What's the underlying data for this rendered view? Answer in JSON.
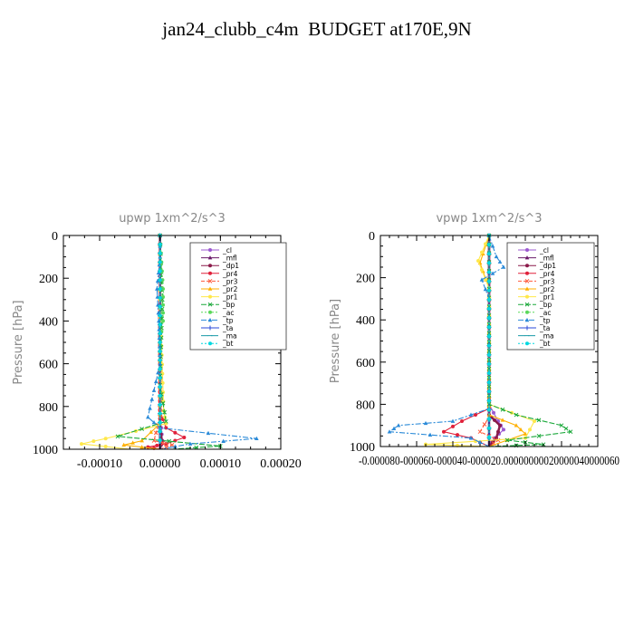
{
  "page": {
    "title": "jan24_clubb_c4m  BUDGET at170E,9N"
  },
  "chart_data": [
    {
      "type": "line",
      "title": "upwp   1xm^2/s^3",
      "ylabel": "Pressure [hPa]",
      "xlabel": "",
      "xlim": [
        -0.00016,
        0.0002
      ],
      "ylim": [
        1000,
        0
      ],
      "y_inverted": true,
      "x_ticks": [
        "-0.00010",
        "0.00000",
        "0.00010",
        "0.00020"
      ],
      "x_tick_values": [
        -0.0001,
        0,
        0.0001,
        0.0002
      ],
      "y_ticks": [
        "0",
        "200",
        "400",
        "600",
        "800",
        "1000"
      ],
      "y_tick_values": [
        0,
        200,
        400,
        600,
        800,
        1000
      ],
      "legend_position": "top-right",
      "series": [
        {
          "name": "_cl",
          "color": "#9b59d0",
          "points": [
            [
              0,
              0
            ],
            [
              0,
              500
            ],
            [
              0,
              800
            ],
            [
              2e-06,
              900
            ],
            [
              4e-06,
              960
            ],
            [
              0,
              1000
            ]
          ]
        },
        {
          "name": "_mfl",
          "color": "#6a1b6a",
          "points": [
            [
              0,
              0
            ],
            [
              0,
              1000
            ]
          ]
        },
        {
          "name": "_dp1",
          "color": "#8b1a4a",
          "points": [
            [
              0,
              0
            ],
            [
              0,
              900
            ],
            [
              3e-06,
              960
            ],
            [
              0,
              1000
            ]
          ]
        },
        {
          "name": "_pr4",
          "color": "#e0203a",
          "points": [
            [
              0,
              0
            ],
            [
              0,
              820
            ],
            [
              1e-05,
              900
            ],
            [
              4e-05,
              945
            ],
            [
              1e-05,
              975
            ],
            [
              -2e-05,
              990
            ],
            [
              0,
              1000
            ]
          ]
        },
        {
          "name": "_pr3",
          "color": "#ff5a3c",
          "points": [
            [
              0,
              0
            ],
            [
              0,
              850
            ],
            [
              -1e-05,
              960
            ],
            [
              2e-05,
              980
            ],
            [
              0,
              1000
            ]
          ]
        },
        {
          "name": "_pr2",
          "color": "#ffb000",
          "points": [
            [
              0,
              0
            ],
            [
              0,
              880
            ],
            [
              -3e-05,
              960
            ],
            [
              -6e-05,
              980
            ],
            [
              0,
              1000
            ]
          ]
        },
        {
          "name": "_pr1",
          "color": "#ffe84a",
          "points": [
            [
              0,
              0
            ],
            [
              0,
              300
            ],
            [
              6e-06,
              820
            ],
            [
              1e-05,
              880
            ],
            [
              -9e-05,
              950
            ],
            [
              -0.00013,
              975
            ],
            [
              -5e-05,
              1000
            ]
          ]
        },
        {
          "name": "_bp",
          "color": "#1aa83a",
          "points": [
            [
              0,
              0
            ],
            [
              4e-06,
              300
            ],
            [
              0,
              700
            ],
            [
              1e-05,
              870
            ],
            [
              -7e-05,
              940
            ],
            [
              0.0001,
              985
            ],
            [
              2e-05,
              1000
            ]
          ]
        },
        {
          "name": "_ac",
          "color": "#5ad85a",
          "points": [
            [
              0,
              0
            ],
            [
              5e-06,
              250
            ],
            [
              5e-06,
              400
            ],
            [
              0,
              500
            ],
            [
              0,
              1000
            ]
          ]
        },
        {
          "name": "_tp",
          "color": "#2a8ad8",
          "points": [
            [
              0,
              0
            ],
            [
              0,
              100
            ],
            [
              -5e-06,
              250
            ],
            [
              -2e-06,
              400
            ],
            [
              0,
              600
            ],
            [
              -2e-05,
              850
            ],
            [
              0,
              900
            ],
            [
              0.00016,
              950
            ],
            [
              5e-05,
              975
            ],
            [
              0,
              1000
            ]
          ]
        },
        {
          "name": "_ta",
          "color": "#2a4ad8",
          "points": [
            [
              0,
              0
            ],
            [
              0,
              1000
            ]
          ]
        },
        {
          "name": "_ma",
          "color": "#1a9aa8",
          "points": [
            [
              0,
              0
            ],
            [
              0,
              1000
            ]
          ]
        },
        {
          "name": "_bt",
          "color": "#00d8e0",
          "points": [
            [
              0,
              0
            ],
            [
              0,
              1000
            ]
          ]
        }
      ]
    },
    {
      "type": "line",
      "title": "vpwp   1xm^2/s^3",
      "ylabel": "Pressure [hPa]",
      "xlabel": "",
      "xlim": [
        -6e-05,
        6e-05
      ],
      "ylim": [
        1000,
        0
      ],
      "y_inverted": true,
      "x_ticks": [
        "-0.000060",
        "-0.000040",
        "-0.000020",
        "0.000000",
        "0.000020",
        "0.000040",
        "0.000060"
      ],
      "x_tick_values": [
        -6e-05,
        -4e-05,
        -2e-05,
        0,
        2e-05,
        4e-05,
        6e-05
      ],
      "x_tick_text": "-0.000080-000060-000040-000020.00000000020000040000060",
      "y_ticks": [
        "0",
        "200",
        "400",
        "600",
        "800",
        "1000"
      ],
      "y_tick_values": [
        0,
        200,
        400,
        600,
        800,
        1000
      ],
      "legend_position": "top-right",
      "series": [
        {
          "name": "_cl",
          "color": "#9b59d0",
          "points": [
            [
              0,
              0
            ],
            [
              0,
              800
            ],
            [
              5e-06,
              880
            ],
            [
              8e-06,
              920
            ],
            [
              3e-06,
              960
            ],
            [
              0,
              1000
            ]
          ]
        },
        {
          "name": "_mfl",
          "color": "#6a1b6a",
          "points": [
            [
              0,
              0
            ],
            [
              0,
              1000
            ]
          ]
        },
        {
          "name": "_dp1",
          "color": "#8b1a4a",
          "points": [
            [
              0,
              0
            ],
            [
              0,
              850
            ],
            [
              6e-06,
              900
            ],
            [
              4e-06,
              960
            ],
            [
              0,
              1000
            ]
          ]
        },
        {
          "name": "_pr4",
          "color": "#e0203a",
          "points": [
            [
              0,
              0
            ],
            [
              0,
              820
            ],
            [
              -1.5e-05,
              880
            ],
            [
              -2.5e-05,
              930
            ],
            [
              -1e-05,
              960
            ],
            [
              0,
              1000
            ]
          ]
        },
        {
          "name": "_pr3",
          "color": "#ff5a3c",
          "points": [
            [
              0,
              0
            ],
            [
              0,
              860
            ],
            [
              -5e-06,
              930
            ],
            [
              5e-06,
              970
            ],
            [
              0,
              1000
            ]
          ]
        },
        {
          "name": "_pr2",
          "color": "#ffb000",
          "points": [
            [
              0,
              0
            ],
            [
              -5e-06,
              130
            ],
            [
              0,
              250
            ],
            [
              0,
              850
            ],
            [
              1.5e-05,
              900
            ],
            [
              2e-05,
              940
            ],
            [
              0,
              1000
            ]
          ]
        },
        {
          "name": "_pr1",
          "color": "#ffe84a",
          "points": [
            [
              0,
              0
            ],
            [
              -6e-06,
              120
            ],
            [
              0,
              250
            ],
            [
              0,
              800
            ],
            [
              2.5e-05,
              880
            ],
            [
              2e-05,
              960
            ],
            [
              -3.5e-05,
              990
            ],
            [
              0,
              1000
            ]
          ]
        },
        {
          "name": "_bp",
          "color": "#1aa83a",
          "points": [
            [
              0,
              0
            ],
            [
              0,
              800
            ],
            [
              1.5e-05,
              850
            ],
            [
              4e-05,
              900
            ],
            [
              4.5e-05,
              930
            ],
            [
              1e-05,
              970
            ],
            [
              3e-05,
              990
            ],
            [
              0,
              1000
            ]
          ]
        },
        {
          "name": "_ac",
          "color": "#5ad85a",
          "points": [
            [
              0,
              0
            ],
            [
              0,
              1000
            ]
          ]
        },
        {
          "name": "_tp",
          "color": "#2a8ad8",
          "points": [
            [
              0,
              0
            ],
            [
              4e-06,
              100
            ],
            [
              8e-06,
              150
            ],
            [
              -4e-06,
              210
            ],
            [
              0,
              300
            ],
            [
              0,
              820
            ],
            [
              -2e-05,
              880
            ],
            [
              -5e-05,
              900
            ],
            [
              -5.5e-05,
              930
            ],
            [
              -1e-05,
              960
            ],
            [
              0,
              1000
            ]
          ]
        },
        {
          "name": "_ta",
          "color": "#2a4ad8",
          "points": [
            [
              0,
              0
            ],
            [
              0,
              1000
            ]
          ]
        },
        {
          "name": "_ma",
          "color": "#1a9aa8",
          "points": [
            [
              0,
              0
            ],
            [
              0,
              1000
            ]
          ]
        },
        {
          "name": "_bt",
          "color": "#00d8e0",
          "points": [
            [
              0,
              0
            ],
            [
              0,
              1000
            ]
          ]
        }
      ]
    }
  ]
}
